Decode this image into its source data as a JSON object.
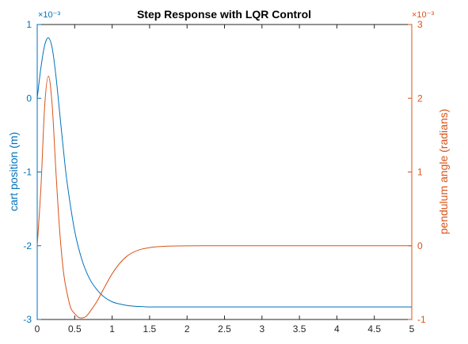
{
  "chart_data": {
    "type": "line",
    "title": "Step Response with LQR Control",
    "xlabel": "",
    "xlim": [
      0,
      5
    ],
    "x_ticks": [
      "0",
      "0.5",
      "1",
      "1.5",
      "2",
      "2.5",
      "3",
      "3.5",
      "4",
      "4.5",
      "5"
    ],
    "left_axis": {
      "label": "cart position (m)",
      "color": "#0072BD",
      "ylim": [
        -3,
        1
      ],
      "ticks": [
        "-3",
        "-2",
        "-1",
        "0",
        "1"
      ],
      "multiplier": "×10⁻³"
    },
    "right_axis": {
      "label": "pendulum angle (radians)",
      "color": "#D95319",
      "ylim": [
        -1,
        3
      ],
      "ticks": [
        "-1",
        "0",
        "1",
        "2",
        "3"
      ],
      "multiplier": "×10⁻³"
    },
    "grid": false,
    "series": [
      {
        "axis": "left",
        "color": "#0072BD",
        "x": [
          0,
          0.05,
          0.1,
          0.15,
          0.2,
          0.25,
          0.3,
          0.35,
          0.4,
          0.5,
          0.6,
          0.7,
          0.8,
          0.9,
          1.0,
          1.1,
          1.2,
          1.3,
          1.4,
          1.5,
          1.6,
          1.8,
          2.0,
          2.5,
          3.0,
          3.5,
          4.0,
          4.5,
          5.0
        ],
        "values": [
          0.0,
          0.42,
          0.72,
          0.82,
          0.68,
          0.3,
          -0.2,
          -0.7,
          -1.15,
          -1.8,
          -2.2,
          -2.45,
          -2.6,
          -2.7,
          -2.76,
          -2.79,
          -2.81,
          -2.82,
          -2.825,
          -2.83,
          -2.83,
          -2.83,
          -2.83,
          -2.83,
          -2.83,
          -2.83,
          -2.83,
          -2.83,
          -2.83
        ]
      },
      {
        "axis": "right",
        "color": "#D95319",
        "x": [
          0,
          0.05,
          0.1,
          0.15,
          0.2,
          0.25,
          0.3,
          0.35,
          0.4,
          0.45,
          0.5,
          0.55,
          0.6,
          0.65,
          0.7,
          0.8,
          0.9,
          1.0,
          1.1,
          1.2,
          1.3,
          1.4,
          1.5,
          1.6,
          1.8,
          2.0,
          2.5,
          3.0,
          3.5,
          4.0,
          4.5,
          5.0
        ],
        "values": [
          0.0,
          0.8,
          1.9,
          2.3,
          1.9,
          1.0,
          0.2,
          -0.35,
          -0.65,
          -0.85,
          -0.92,
          -0.97,
          -0.98,
          -0.96,
          -0.9,
          -0.75,
          -0.56,
          -0.38,
          -0.24,
          -0.14,
          -0.08,
          -0.045,
          -0.025,
          -0.013,
          -0.004,
          -0.001,
          0,
          0,
          0,
          0,
          0,
          0
        ]
      }
    ]
  }
}
